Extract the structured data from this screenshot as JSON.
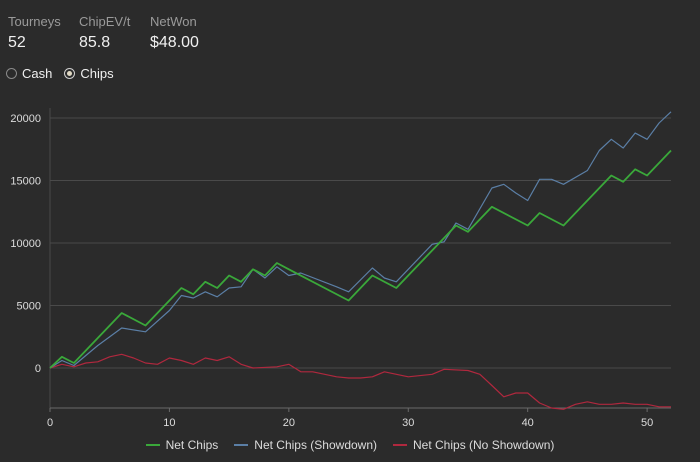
{
  "stats": [
    {
      "label": "Tourneys",
      "value": "52"
    },
    {
      "label": "ChipEV/t",
      "value": "85.8"
    },
    {
      "label": "NetWon",
      "value": "$48.00"
    }
  ],
  "toggle": {
    "options": [
      {
        "label": "Cash",
        "checked": false
      },
      {
        "label": "Chips",
        "checked": true
      }
    ]
  },
  "chart_data": {
    "type": "line",
    "title": "",
    "xlabel": "",
    "ylabel": "",
    "xlim": [
      0,
      52
    ],
    "ylim": [
      -3200,
      20800
    ],
    "xticks": [
      0,
      10,
      20,
      30,
      40,
      50
    ],
    "yticks": [
      0,
      5000,
      10000,
      15000,
      20000
    ],
    "grid": true,
    "legend": "bottom",
    "series": [
      {
        "name": "Net Chips",
        "color": "#3aa83a",
        "points": [
          [
            0,
            0
          ],
          [
            1,
            900
          ],
          [
            2,
            400
          ],
          [
            4,
            2400
          ],
          [
            6,
            4400
          ],
          [
            8,
            3400
          ],
          [
            11,
            6400
          ],
          [
            12,
            5900
          ],
          [
            13,
            6900
          ],
          [
            14,
            6400
          ],
          [
            15,
            7400
          ],
          [
            16,
            6900
          ],
          [
            17,
            7900
          ],
          [
            18,
            7400
          ],
          [
            19,
            8400
          ],
          [
            20,
            7900
          ],
          [
            25,
            5400
          ],
          [
            27,
            7400
          ],
          [
            29,
            6400
          ],
          [
            34,
            11400
          ],
          [
            35,
            10900
          ],
          [
            37,
            12900
          ],
          [
            40,
            11400
          ],
          [
            41,
            12400
          ],
          [
            43,
            11400
          ],
          [
            47,
            15400
          ],
          [
            48,
            14900
          ],
          [
            49,
            15900
          ],
          [
            50,
            15400
          ],
          [
            52,
            17400
          ]
        ]
      },
      {
        "name": "Net Chips (Showdown)",
        "color": "#5b7fa6",
        "points": [
          [
            0,
            0
          ],
          [
            1,
            600
          ],
          [
            2,
            200
          ],
          [
            4,
            1800
          ],
          [
            6,
            3200
          ],
          [
            8,
            2900
          ],
          [
            10,
            4600
          ],
          [
            11,
            5800
          ],
          [
            12,
            5600
          ],
          [
            13,
            6100
          ],
          [
            14,
            5700
          ],
          [
            15,
            6400
          ],
          [
            16,
            6500
          ],
          [
            17,
            7900
          ],
          [
            18,
            7200
          ],
          [
            19,
            8100
          ],
          [
            20,
            7400
          ],
          [
            21,
            7600
          ],
          [
            24,
            6500
          ],
          [
            25,
            6100
          ],
          [
            27,
            8000
          ],
          [
            28,
            7200
          ],
          [
            29,
            6900
          ],
          [
            32,
            9900
          ],
          [
            33,
            10100
          ],
          [
            34,
            11600
          ],
          [
            35,
            11100
          ],
          [
            37,
            14400
          ],
          [
            38,
            14700
          ],
          [
            39,
            14000
          ],
          [
            40,
            13400
          ],
          [
            41,
            15100
          ],
          [
            42,
            15100
          ],
          [
            43,
            14700
          ],
          [
            45,
            15800
          ],
          [
            46,
            17400
          ],
          [
            47,
            18300
          ],
          [
            48,
            17600
          ],
          [
            49,
            18800
          ],
          [
            50,
            18300
          ],
          [
            51,
            19600
          ],
          [
            52,
            20500
          ]
        ]
      },
      {
        "name": "Net Chips (No Showdown)",
        "color": "#b0283e",
        "points": [
          [
            0,
            0
          ],
          [
            1,
            300
          ],
          [
            2,
            100
          ],
          [
            3,
            400
          ],
          [
            4,
            500
          ],
          [
            5,
            900
          ],
          [
            6,
            1100
          ],
          [
            7,
            800
          ],
          [
            8,
            400
          ],
          [
            9,
            300
          ],
          [
            10,
            800
          ],
          [
            11,
            600
          ],
          [
            12,
            300
          ],
          [
            13,
            800
          ],
          [
            14,
            600
          ],
          [
            15,
            900
          ],
          [
            16,
            300
          ],
          [
            17,
            0
          ],
          [
            19,
            100
          ],
          [
            20,
            300
          ],
          [
            21,
            -300
          ],
          [
            22,
            -300
          ],
          [
            24,
            -700
          ],
          [
            25,
            -800
          ],
          [
            26,
            -800
          ],
          [
            27,
            -700
          ],
          [
            28,
            -300
          ],
          [
            30,
            -700
          ],
          [
            32,
            -500
          ],
          [
            33,
            -100
          ],
          [
            35,
            -200
          ],
          [
            36,
            -500
          ],
          [
            37,
            -1400
          ],
          [
            38,
            -2300
          ],
          [
            39,
            -2000
          ],
          [
            40,
            -2000
          ],
          [
            41,
            -2800
          ],
          [
            42,
            -3200
          ],
          [
            43,
            -3300
          ],
          [
            44,
            -2900
          ],
          [
            45,
            -2700
          ],
          [
            46,
            -2900
          ],
          [
            47,
            -2900
          ],
          [
            48,
            -2800
          ],
          [
            49,
            -2900
          ],
          [
            50,
            -2900
          ],
          [
            51,
            -3100
          ],
          [
            52,
            -3100
          ]
        ]
      }
    ]
  }
}
